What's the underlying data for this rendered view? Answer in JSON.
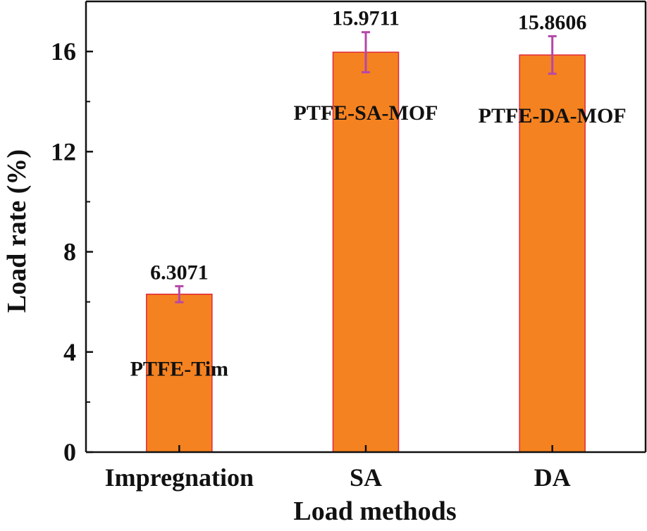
{
  "chart_data": {
    "type": "bar",
    "title": "",
    "xlabel": "Load methods",
    "ylabel": "Load rate (%)",
    "categories": [
      "Impregnation",
      "SA",
      "DA"
    ],
    "values": [
      6.3071,
      15.9711,
      15.8606
    ],
    "value_labels": [
      "6.3071",
      "15.9711",
      "15.8606"
    ],
    "errors": [
      0.32,
      0.8,
      0.75
    ],
    "bar_annotations": [
      "PTFE-Tim",
      "PTFE-SA-MOF",
      "PTFE-DA-MOF"
    ],
    "ylim": [
      0,
      18
    ],
    "yticks": [
      0,
      4,
      8,
      12,
      16
    ],
    "ytick_labels": [
      "0",
      "4",
      "8",
      "12",
      "16"
    ],
    "minor_yticks": [
      2,
      6,
      10,
      14,
      18
    ],
    "grid": false,
    "colors": {
      "bar_fill": "#F58220",
      "bar_edge": "#E0283C",
      "error_bar": "#B547A9",
      "axis": "#111111"
    }
  }
}
